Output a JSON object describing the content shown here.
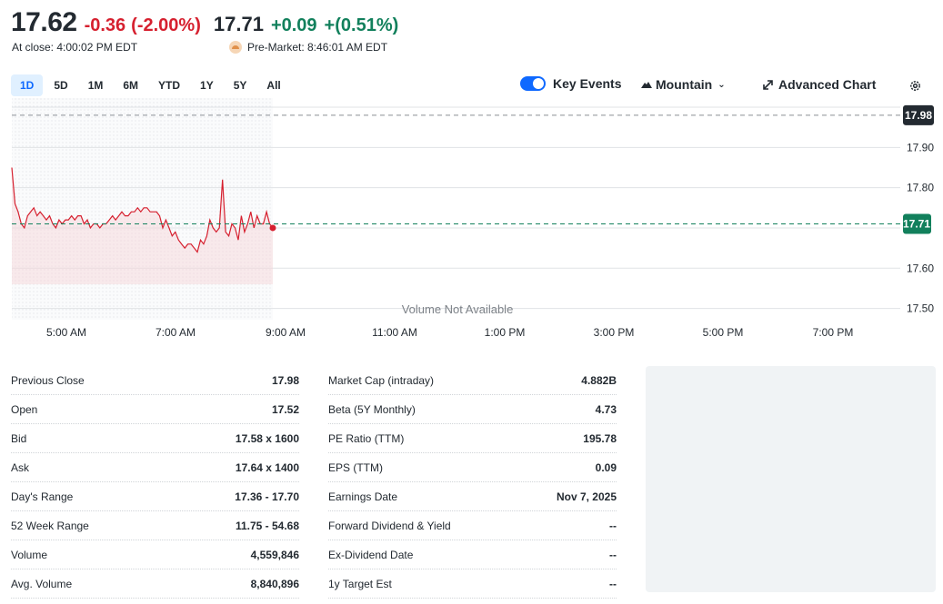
{
  "quote": {
    "close_price": "17.62",
    "close_change": "-0.36",
    "close_change_pct": "(-2.00%)",
    "close_label": "At close: 4:00:02 PM EDT",
    "pre_price": "17.71",
    "pre_change": "+0.09",
    "pre_change_pct": "+(0.51%)",
    "pre_label": "Pre-Market: 8:46:01 AM EDT"
  },
  "ranges": [
    "1D",
    "5D",
    "1M",
    "6M",
    "YTD",
    "1Y",
    "5Y",
    "All"
  ],
  "active_range": "1D",
  "controls": {
    "key_events": "Key Events",
    "chart_type": "Mountain",
    "advanced_chart": "Advanced Chart"
  },
  "colors": {
    "negative": "#d6202f",
    "positive": "#12805c",
    "accent": "#0f69ff"
  },
  "chart_data": {
    "type": "area",
    "x_ticks": [
      "5:00 AM",
      "7:00 AM",
      "9:00 AM",
      "11:00 AM",
      "1:00 PM",
      "3:00 PM",
      "5:00 PM",
      "7:00 PM"
    ],
    "y_ticks": [
      "17.50",
      "17.60",
      "17.80",
      "17.90"
    ],
    "ylim": [
      17.49,
      18.0
    ],
    "previous_close": "17.98",
    "current_price": "17.71",
    "volume_note": "Volume Not Available",
    "series": [
      {
        "values": [
          17.85,
          17.76,
          17.74,
          17.71,
          17.7,
          17.73,
          17.74,
          17.75,
          17.73,
          17.74,
          17.73,
          17.72,
          17.73,
          17.71,
          17.7,
          17.72,
          17.71,
          17.72,
          17.72,
          17.73,
          17.72,
          17.73,
          17.73,
          17.71,
          17.72,
          17.7,
          17.71,
          17.71,
          17.7,
          17.71,
          17.71,
          17.72,
          17.73,
          17.72,
          17.73,
          17.74,
          17.73,
          17.73,
          17.74,
          17.74,
          17.75,
          17.74,
          17.75,
          17.75,
          17.74,
          17.74,
          17.74,
          17.73,
          17.7,
          17.72,
          17.7,
          17.68,
          17.69,
          17.67,
          17.66,
          17.65,
          17.66,
          17.66,
          17.65,
          17.64,
          17.67,
          17.66,
          17.68,
          17.72,
          17.7,
          17.69,
          17.7,
          17.82,
          17.69,
          17.68,
          17.71,
          17.7,
          17.67,
          17.73,
          17.69,
          17.71,
          17.74,
          17.7,
          17.73,
          17.71,
          17.71,
          17.74,
          17.71,
          17.7
        ]
      }
    ]
  },
  "stats_left": [
    {
      "label": "Previous Close",
      "value": "17.98"
    },
    {
      "label": "Open",
      "value": "17.52"
    },
    {
      "label": "Bid",
      "value": "17.58 x 1600"
    },
    {
      "label": "Ask",
      "value": "17.64 x 1400"
    },
    {
      "label": "Day's Range",
      "value": "17.36 - 17.70"
    },
    {
      "label": "52 Week Range",
      "value": "11.75 - 54.68"
    },
    {
      "label": "Volume",
      "value": "4,559,846"
    },
    {
      "label": "Avg. Volume",
      "value": "8,840,896"
    }
  ],
  "stats_right": [
    {
      "label": "Market Cap (intraday)",
      "value": "4.882B"
    },
    {
      "label": "Beta (5Y Monthly)",
      "value": "4.73"
    },
    {
      "label": "PE Ratio (TTM)",
      "value": "195.78"
    },
    {
      "label": "EPS (TTM)",
      "value": "0.09"
    },
    {
      "label": "Earnings Date",
      "value": "Nov 7, 2025"
    },
    {
      "label": "Forward Dividend & Yield",
      "value": "--"
    },
    {
      "label": "Ex-Dividend Date",
      "value": "--"
    },
    {
      "label": "1y Target Est",
      "value": "--"
    }
  ]
}
